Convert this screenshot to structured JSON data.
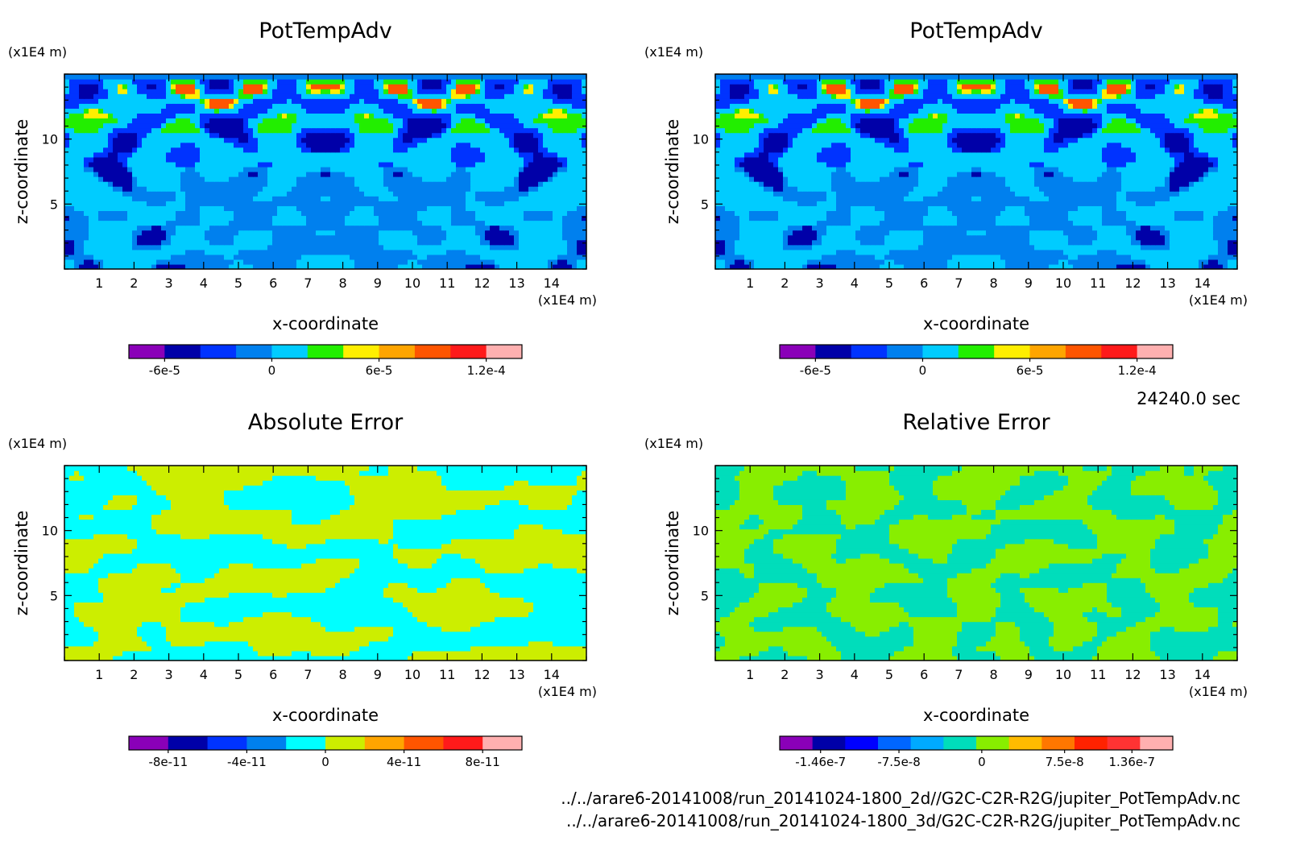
{
  "timestamp": "24240.0 sec",
  "files": [
    "../../arare6-20141008/run_20141024-1800_2d//G2C-C2R-R2G/jupiter_PotTempAdv.nc",
    "../../arare6-20141008/run_20141024-1800_3d/G2C-C2R-R2G/jupiter_PotTempAdv.nc"
  ],
  "chart_data": [
    {
      "type": "heatmap",
      "title": "PotTempAdv",
      "xlabel": "x-coordinate",
      "ylabel": "z-coordinate",
      "x_unit": "(x1E4 m)",
      "y_unit": "(x1E4 m)",
      "xlim": [
        0,
        15
      ],
      "ylim": [
        0,
        15
      ],
      "x_ticks": [
        1,
        2,
        3,
        4,
        5,
        6,
        7,
        8,
        9,
        10,
        11,
        12,
        13,
        14
      ],
      "y_ticks": [
        5,
        10
      ],
      "colorbar": {
        "colors": [
          "#8a00b8",
          "#0000a8",
          "#0033ff",
          "#0080ee",
          "#00ccff",
          "#22ee00",
          "#ffee00",
          "#ffa500",
          "#ff5500",
          "#ff1a1a",
          "#ffb0b0"
        ],
        "range": [
          -8e-05,
          0.00014
        ],
        "tick_values": [
          -6e-05,
          0,
          6e-05,
          0.00012
        ],
        "tick_labels": [
          "-6e-5",
          "0",
          "6e-5",
          "1.2e-4"
        ]
      },
      "palette": [
        "#0080ee",
        "#00ccff",
        "#0033ff",
        "#0000a8",
        "#22ee00",
        "#ffee00",
        "#ff5500",
        "#ff1a1a"
      ]
    },
    {
      "type": "heatmap",
      "title": "PotTempAdv",
      "xlabel": "x-coordinate",
      "ylabel": "z-coordinate",
      "x_unit": "(x1E4 m)",
      "y_unit": "(x1E4 m)",
      "xlim": [
        0,
        15
      ],
      "ylim": [
        0,
        15
      ],
      "x_ticks": [
        1,
        2,
        3,
        4,
        5,
        6,
        7,
        8,
        9,
        10,
        11,
        12,
        13,
        14
      ],
      "y_ticks": [
        5,
        10
      ],
      "colorbar": {
        "colors": [
          "#8a00b8",
          "#0000a8",
          "#0033ff",
          "#0080ee",
          "#00ccff",
          "#22ee00",
          "#ffee00",
          "#ffa500",
          "#ff5500",
          "#ff1a1a",
          "#ffb0b0"
        ],
        "range": [
          -8e-05,
          0.00014
        ],
        "tick_values": [
          -6e-05,
          0,
          6e-05,
          0.00012
        ],
        "tick_labels": [
          "-6e-5",
          "0",
          "6e-5",
          "1.2e-4"
        ]
      },
      "palette": [
        "#0080ee",
        "#00ccff",
        "#0033ff",
        "#0000a8",
        "#22ee00",
        "#ffee00",
        "#ff5500",
        "#ff1a1a"
      ]
    },
    {
      "type": "heatmap",
      "title": "Absolute Error",
      "xlabel": "x-coordinate",
      "ylabel": "z-coordinate",
      "x_unit": "(x1E4 m)",
      "y_unit": "(x1E4 m)",
      "xlim": [
        0,
        15
      ],
      "ylim": [
        0,
        15
      ],
      "x_ticks": [
        1,
        2,
        3,
        4,
        5,
        6,
        7,
        8,
        9,
        10,
        11,
        12,
        13,
        14
      ],
      "y_ticks": [
        5,
        10
      ],
      "colorbar": {
        "colors": [
          "#8a00b8",
          "#0000a8",
          "#0033ff",
          "#0080ee",
          "#00ffff",
          "#ccee00",
          "#ffa500",
          "#ff5500",
          "#ff1a1a",
          "#ffb0b0"
        ],
        "range": [
          -1e-10,
          1e-10
        ],
        "tick_values": [
          -8e-11,
          -4e-11,
          0,
          4e-11,
          8e-11
        ],
        "tick_labels": [
          "-8e-11",
          "-4e-11",
          "0",
          "4e-11",
          "8e-11"
        ]
      },
      "palette": [
        "#00ffff",
        "#ccee00"
      ]
    },
    {
      "type": "heatmap",
      "title": "Relative Error",
      "xlabel": "x-coordinate",
      "ylabel": "z-coordinate",
      "x_unit": "(x1E4 m)",
      "y_unit": "(x1E4 m)",
      "xlim": [
        0,
        15
      ],
      "ylim": [
        0,
        15
      ],
      "x_ticks": [
        1,
        2,
        3,
        4,
        5,
        6,
        7,
        8,
        9,
        10,
        11,
        12,
        13,
        14
      ],
      "y_ticks": [
        5,
        10
      ],
      "colorbar": {
        "colors": [
          "#8a00b8",
          "#0000a8",
          "#0000ff",
          "#0066ff",
          "#00aaff",
          "#00ddbb",
          "#88ee00",
          "#ffbb00",
          "#ff7700",
          "#ff2200",
          "#ff3333",
          "#ffb0b0"
        ],
        "range": [
          -1.83e-07,
          1.73e-07
        ],
        "tick_values": [
          -1.46e-07,
          -7.5e-08,
          0,
          7.5e-08,
          1.36e-07
        ],
        "tick_labels": [
          "-1.46e-7",
          "-7.5e-8",
          "0",
          "7.5e-8",
          "1.36e-7"
        ]
      },
      "palette": [
        "#00ddbb",
        "#88ee00",
        "#0000ff",
        "#ff2200"
      ]
    }
  ]
}
